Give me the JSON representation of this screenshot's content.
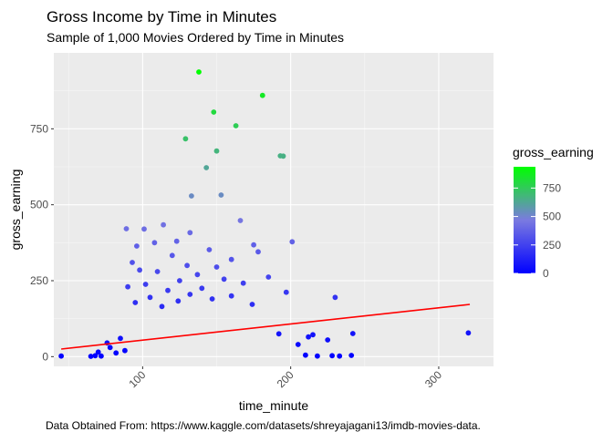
{
  "chart_data": {
    "type": "scatter",
    "title": "Gross Income by Time in Minutes",
    "subtitle": "Sample of 1,000 Movies Ordered by Time in Minutes",
    "caption": "Data Obtained From: https://www.kaggle.com/datasets/shreyajagani13/imdb-movies-data.",
    "xlabel": "time_minute",
    "ylabel": "gross_earning",
    "xlim": [
      40,
      337
    ],
    "ylim": [
      -32,
      1000
    ],
    "xticks": [
      100,
      200,
      300
    ],
    "yticks": [
      0,
      250,
      500,
      750
    ],
    "grid": true,
    "x_tick_label_rotation": -45,
    "legend": {
      "title": "gross_earning",
      "placement": "right",
      "min": 0,
      "max": 937,
      "ticks": [
        0,
        250,
        500,
        750
      ],
      "color_low": "#0000ff",
      "color_high": "#00ff00"
    },
    "panel_background": "#ebebeb",
    "grid_color": "#ffffff",
    "trend_line": {
      "color": "#ff0000",
      "x": [
        45,
        321
      ],
      "y": [
        25,
        172
      ]
    },
    "points": [
      {
        "x": 138,
        "y": 937
      },
      {
        "x": 181,
        "y": 860
      },
      {
        "x": 148,
        "y": 805
      },
      {
        "x": 163,
        "y": 760
      },
      {
        "x": 129,
        "y": 717
      },
      {
        "x": 150,
        "y": 677
      },
      {
        "x": 193,
        "y": 661
      },
      {
        "x": 195,
        "y": 660
      },
      {
        "x": 143,
        "y": 622
      },
      {
        "x": 153,
        "y": 532
      },
      {
        "x": 133,
        "y": 529
      },
      {
        "x": 166,
        "y": 448
      },
      {
        "x": 114,
        "y": 434
      },
      {
        "x": 89,
        "y": 421
      },
      {
        "x": 101,
        "y": 420
      },
      {
        "x": 132,
        "y": 408
      },
      {
        "x": 201,
        "y": 378
      },
      {
        "x": 175,
        "y": 368
      },
      {
        "x": 123,
        "y": 380
      },
      {
        "x": 108,
        "y": 375
      },
      {
        "x": 96,
        "y": 364
      },
      {
        "x": 145,
        "y": 352
      },
      {
        "x": 178,
        "y": 345
      },
      {
        "x": 120,
        "y": 333
      },
      {
        "x": 160,
        "y": 320
      },
      {
        "x": 93,
        "y": 310
      },
      {
        "x": 130,
        "y": 300
      },
      {
        "x": 150,
        "y": 295
      },
      {
        "x": 98,
        "y": 285
      },
      {
        "x": 110,
        "y": 280
      },
      {
        "x": 137,
        "y": 270
      },
      {
        "x": 185,
        "y": 262
      },
      {
        "x": 155,
        "y": 255
      },
      {
        "x": 125,
        "y": 250
      },
      {
        "x": 168,
        "y": 242
      },
      {
        "x": 102,
        "y": 238
      },
      {
        "x": 90,
        "y": 230
      },
      {
        "x": 140,
        "y": 225
      },
      {
        "x": 117,
        "y": 218
      },
      {
        "x": 197,
        "y": 212
      },
      {
        "x": 132,
        "y": 205
      },
      {
        "x": 160,
        "y": 200
      },
      {
        "x": 105,
        "y": 195
      },
      {
        "x": 147,
        "y": 190
      },
      {
        "x": 124,
        "y": 183
      },
      {
        "x": 95,
        "y": 178
      },
      {
        "x": 174,
        "y": 172
      },
      {
        "x": 113,
        "y": 165
      },
      {
        "x": 320,
        "y": 78
      },
      {
        "x": 242,
        "y": 76
      },
      {
        "x": 230,
        "y": 195
      },
      {
        "x": 215,
        "y": 72
      },
      {
        "x": 225,
        "y": 55
      },
      {
        "x": 205,
        "y": 40
      },
      {
        "x": 212,
        "y": 65
      },
      {
        "x": 192,
        "y": 75
      },
      {
        "x": 45,
        "y": 2
      },
      {
        "x": 65,
        "y": 1
      },
      {
        "x": 68,
        "y": 3
      },
      {
        "x": 72,
        "y": 2
      },
      {
        "x": 228,
        "y": 3
      },
      {
        "x": 233,
        "y": 2
      },
      {
        "x": 241,
        "y": 4
      },
      {
        "x": 218,
        "y": 2
      },
      {
        "x": 210,
        "y": 5
      },
      {
        "x": 76,
        "y": 45
      },
      {
        "x": 78,
        "y": 30
      },
      {
        "x": 82,
        "y": 12
      },
      {
        "x": 85,
        "y": 60
      },
      {
        "x": 88,
        "y": 20
      },
      {
        "x": 70,
        "y": 15
      }
    ]
  }
}
